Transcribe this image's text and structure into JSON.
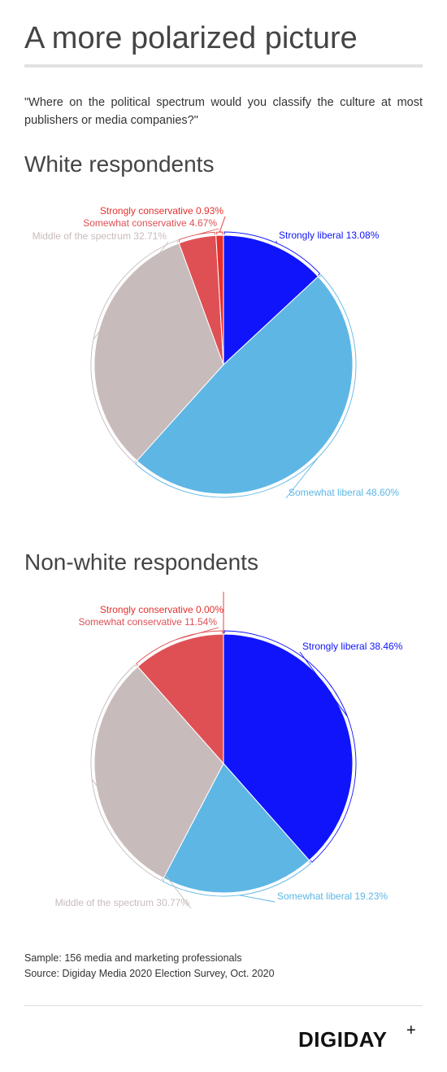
{
  "title": "A more polarized picture",
  "question": "\"Where on the political spectrum would you classify the culture at most publishers or media companies?\"",
  "colors": {
    "strongly_liberal": "#1014fb",
    "somewhat_liberal": "#5eb6e4",
    "middle": "#c8bbbb",
    "somewhat_conservative": "#df5055",
    "strongly_conservative": "#e5302d"
  },
  "chart_data": [
    {
      "type": "pie",
      "title": "White respondents",
      "series": [
        {
          "name": "Strongly liberal",
          "value": 13.08,
          "label": "Strongly liberal 13.08%"
        },
        {
          "name": "Somewhat liberal",
          "value": 48.6,
          "label": "Somewhat liberal 48.60%"
        },
        {
          "name": "Middle of the spectrum",
          "value": 32.71,
          "label": "Middle of the spectrum 32.71%"
        },
        {
          "name": "Somewhat conservative",
          "value": 4.67,
          "label": "Somewhat conservative 4.67%"
        },
        {
          "name": "Strongly conservative",
          "value": 0.93,
          "label": "Strongly conservative 0.93%"
        }
      ]
    },
    {
      "type": "pie",
      "title": "Non-white respondents",
      "series": [
        {
          "name": "Strongly liberal",
          "value": 38.46,
          "label": "Strongly liberal 38.46%"
        },
        {
          "name": "Somewhat liberal",
          "value": 19.23,
          "label": "Somewhat liberal 19.23%"
        },
        {
          "name": "Middle of the spectrum",
          "value": 30.77,
          "label": "Middle of the spectrum 30.77%"
        },
        {
          "name": "Somewhat conservative",
          "value": 11.54,
          "label": "Somewhat conservative 11.54%"
        },
        {
          "name": "Strongly conservative",
          "value": 0.0,
          "label": "Strongly conservative 0.00%"
        }
      ]
    }
  ],
  "footer": {
    "sample": "Sample: 156 media and marketing professionals",
    "source": "Source: Digiday Media 2020 Election Survey, Oct. 2020"
  },
  "logo": {
    "text": "DIGIDAY",
    "plus": "+"
  }
}
